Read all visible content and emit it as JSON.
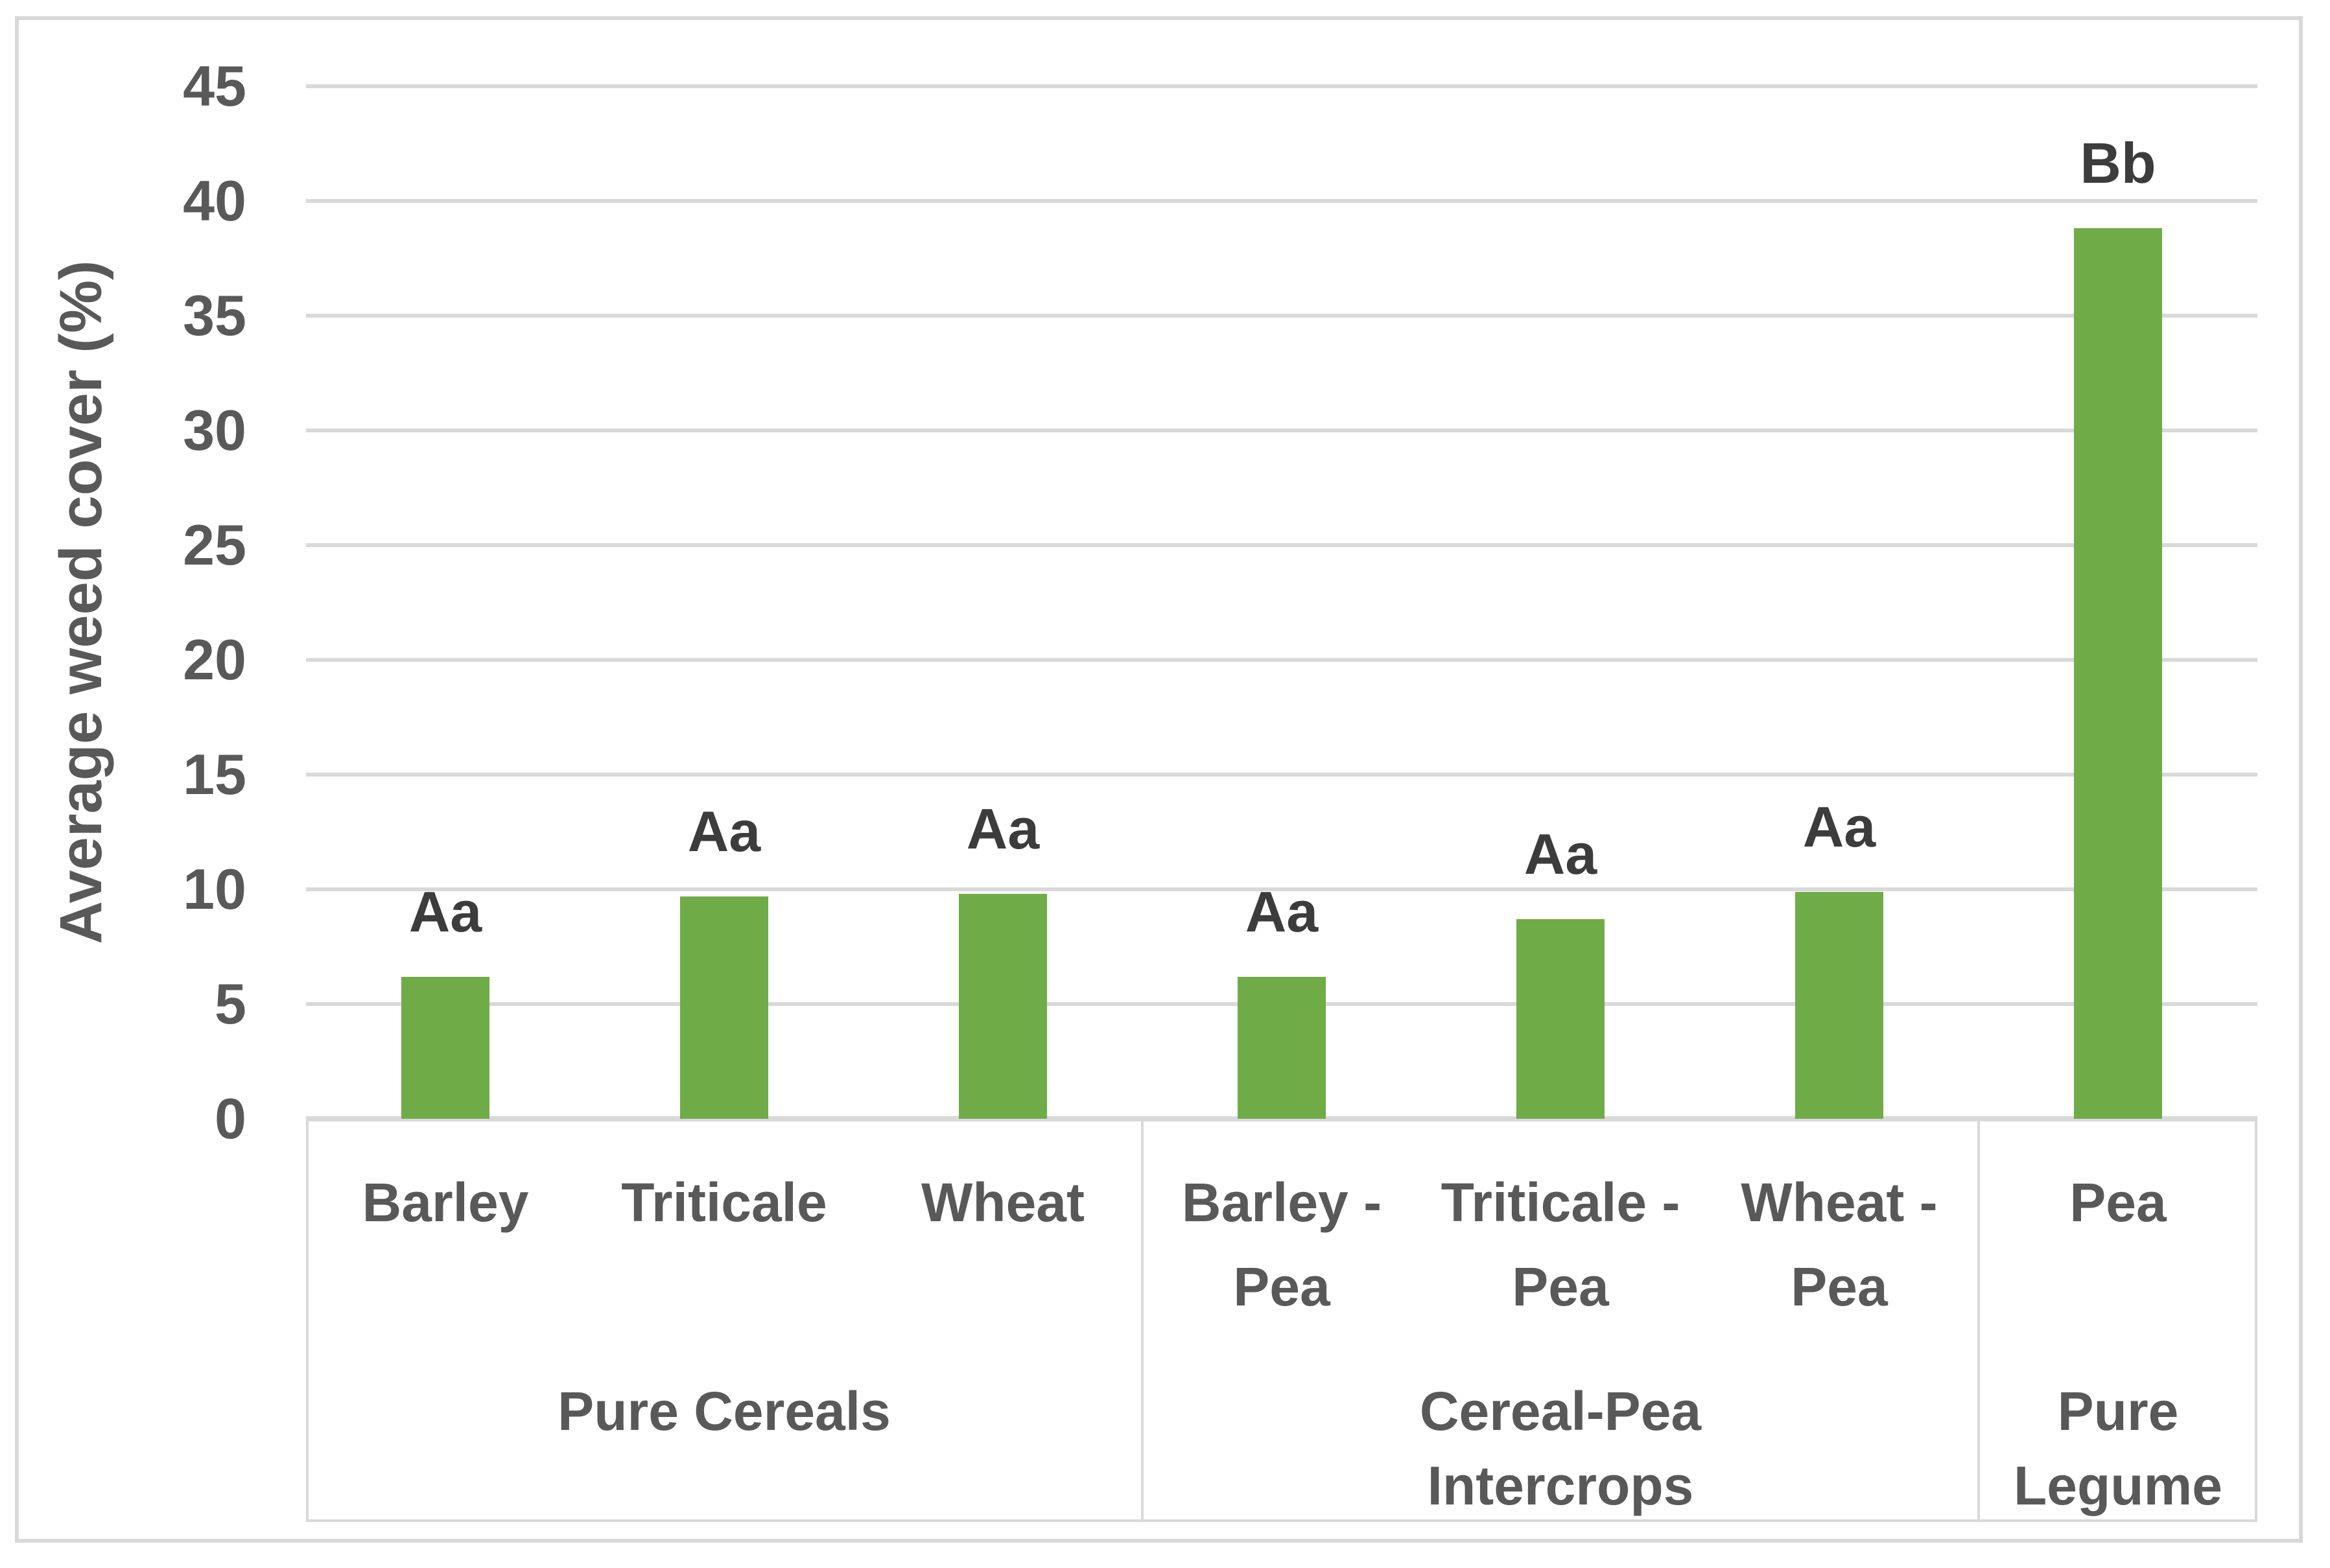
{
  "chart_data": {
    "type": "bar",
    "title": "",
    "xlabel": "",
    "ylabel": "Average weed cover (%)",
    "ylim": [
      0,
      45
    ],
    "ytick_step": 5,
    "yticks": [
      45,
      40,
      35,
      30,
      25,
      20,
      15,
      10,
      5,
      0
    ],
    "grid": "horizontal",
    "legend_position": "none",
    "categories": [
      "Barley",
      "Triticale",
      "Wheat",
      "Barley - Pea",
      "Triticale - Pea",
      "Wheat - Pea",
      "Pea"
    ],
    "category_label_lines": [
      [
        "Barley"
      ],
      [
        "Triticale"
      ],
      [
        "Wheat"
      ],
      [
        "Barley -",
        "Pea"
      ],
      [
        "Triticale -",
        "Pea"
      ],
      [
        "Wheat -",
        "Pea"
      ],
      [
        "Pea"
      ]
    ],
    "series": [
      {
        "name": "Average weed cover (%)",
        "values": [
          6.2,
          9.7,
          9.8,
          6.2,
          8.7,
          9.9,
          38.8
        ]
      }
    ],
    "bar_annotations": [
      "Aa",
      "Aa",
      "Aa",
      "Aa",
      "Aa",
      "Aa",
      "Bb"
    ],
    "groups": [
      {
        "label": "Pure Cereals",
        "lines": [
          "Pure Cereals"
        ],
        "category_count": 3
      },
      {
        "label": "Cereal-Pea Intercrops",
        "lines": [
          "Cereal-Pea",
          "Intercrops"
        ],
        "category_count": 3
      },
      {
        "label": "Pure Legume",
        "lines": [
          "Pure",
          "Legume"
        ],
        "category_count": 1
      }
    ],
    "colors": {
      "bar_fill": "#6FAC47",
      "gridline": "#D9D9D9",
      "axis_line": "#D9D9D9",
      "chart_border": "#D9D9D9",
      "axis_text": "#595959",
      "annotation_text": "#3C3C3C"
    }
  }
}
